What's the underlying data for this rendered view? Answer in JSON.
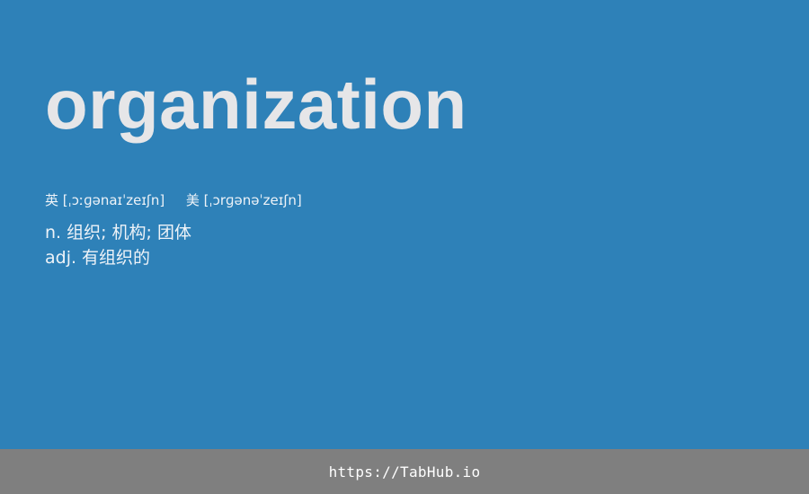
{
  "card": {
    "word": "organization",
    "phonetics": {
      "uk_label": "英",
      "uk_ipa": "[ˌɔːɡənaɪˈzeɪʃn]",
      "us_label": "美",
      "us_ipa": "[ˌɔrɡənəˈzeɪʃn]"
    },
    "definitions": [
      "n. 组织; 机构; 团体",
      "adj. 有组织的"
    ]
  },
  "footer": {
    "link": "https://TabHub.io"
  },
  "colors": {
    "background": "#2e81b8",
    "footer_background": "#7f7f7f",
    "word_text": "#e6e6e8"
  }
}
